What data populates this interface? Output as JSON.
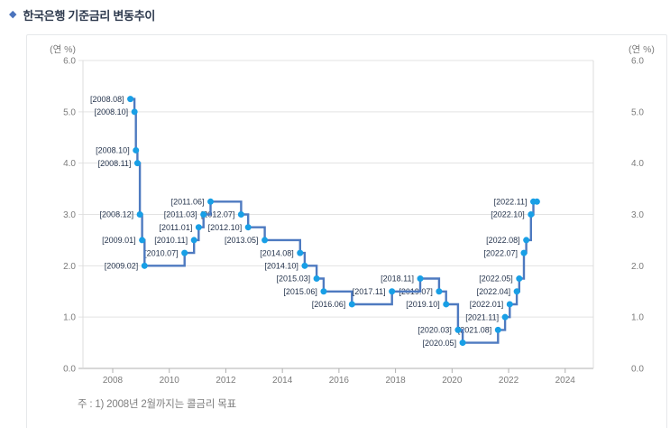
{
  "header": {
    "bullet": "◆",
    "title": "한국은행 기준금리 변동추이"
  },
  "footnote": {
    "text": "주 : 1) 2008년 2월까지는 콜금리 목표"
  },
  "chart_data": {
    "type": "line",
    "subtype": "step-after",
    "title": "한국은행 기준금리 변동추이",
    "ylabel": "(연 %)",
    "ylabel_right": "(연 %)",
    "xlabel": "",
    "ylim": [
      0.0,
      6.0
    ],
    "xlim": [
      2007,
      2025
    ],
    "grid": true,
    "legend": "none",
    "colors": {
      "line": "#4e7ac0",
      "marker": "#189fe6",
      "grid": "#e3e3e3",
      "axis": "#b0b0b0",
      "axis_side": "#dcdcdc"
    },
    "yticks": [
      {
        "value": 6,
        "label": "6.0"
      },
      {
        "value": 5,
        "label": "5.0"
      },
      {
        "value": 4,
        "label": "4.0"
      },
      {
        "value": 3,
        "label": "3.0"
      },
      {
        "value": 2,
        "label": "2.0"
      },
      {
        "value": 1,
        "label": "1.0"
      },
      {
        "value": 0,
        "label": "0.0"
      }
    ],
    "xticks": [
      {
        "value": 2008,
        "label": "2008"
      },
      {
        "value": 2010,
        "label": "2010"
      },
      {
        "value": 2012,
        "label": "2012"
      },
      {
        "value": 2014,
        "label": "2014"
      },
      {
        "value": 2016,
        "label": "2016"
      },
      {
        "value": 2018,
        "label": "2018"
      },
      {
        "value": 2020,
        "label": "2020"
      },
      {
        "value": 2022,
        "label": "2022"
      },
      {
        "value": 2024,
        "label": "2024"
      }
    ],
    "points": [
      {
        "label": "[2008.08]",
        "x": 2008.625,
        "y": 5.25
      },
      {
        "label": "[2008.10]",
        "x": 2008.77,
        "y": 5.0
      },
      {
        "label": "[2008.10]",
        "x": 2008.82,
        "y": 4.25
      },
      {
        "label": "[2008.11]",
        "x": 2008.875,
        "y": 4.0
      },
      {
        "label": "[2008.12]",
        "x": 2008.96,
        "y": 3.0
      },
      {
        "label": "[2009.01]",
        "x": 2009.04,
        "y": 2.5
      },
      {
        "label": "[2009.02]",
        "x": 2009.125,
        "y": 2.0
      },
      {
        "label": "[2010.07]",
        "x": 2010.54,
        "y": 2.25
      },
      {
        "label": "[2010.11]",
        "x": 2010.875,
        "y": 2.5
      },
      {
        "label": "[2011.01]",
        "x": 2011.04,
        "y": 2.75
      },
      {
        "label": "[2011.03]",
        "x": 2011.21,
        "y": 3.0
      },
      {
        "label": "[2011.06]",
        "x": 2011.46,
        "y": 3.25
      },
      {
        "label": "[2012.07]",
        "x": 2012.54,
        "y": 3.0
      },
      {
        "label": "[2012.10]",
        "x": 2012.79,
        "y": 2.75
      },
      {
        "label": "[2013.05]",
        "x": 2013.375,
        "y": 2.5
      },
      {
        "label": "[2014.08]",
        "x": 2014.625,
        "y": 2.25
      },
      {
        "label": "[2014.10]",
        "x": 2014.79,
        "y": 2.0
      },
      {
        "label": "[2015.03]",
        "x": 2015.21,
        "y": 1.75
      },
      {
        "label": "[2015.06]",
        "x": 2015.46,
        "y": 1.5
      },
      {
        "label": "[2016.06]",
        "x": 2016.46,
        "y": 1.25
      },
      {
        "label": "[2017.11]",
        "x": 2017.875,
        "y": 1.5
      },
      {
        "label": "[2018.11]",
        "x": 2018.875,
        "y": 1.75
      },
      {
        "label": "[2019.07]",
        "x": 2019.54,
        "y": 1.5
      },
      {
        "label": "[2019.10]",
        "x": 2019.79,
        "y": 1.25
      },
      {
        "label": "[2020.03]",
        "x": 2020.21,
        "y": 0.75
      },
      {
        "label": "[2020.05]",
        "x": 2020.375,
        "y": 0.5
      },
      {
        "label": "[2021.08]",
        "x": 2021.625,
        "y": 0.75
      },
      {
        "label": "[2021.11]",
        "x": 2021.875,
        "y": 1.0
      },
      {
        "label": "[2022.01]",
        "x": 2022.04,
        "y": 1.25
      },
      {
        "label": "[2022.04]",
        "x": 2022.29,
        "y": 1.5
      },
      {
        "label": "[2022.05]",
        "x": 2022.375,
        "y": 1.75
      },
      {
        "label": "[2022.07]",
        "x": 2022.54,
        "y": 2.25
      },
      {
        "label": "[2022.08]",
        "x": 2022.625,
        "y": 2.5
      },
      {
        "label": "[2022.10]",
        "x": 2022.79,
        "y": 3.0
      },
      {
        "label": "[2022.11]",
        "x": 2022.875,
        "y": 3.25
      },
      {
        "label": "",
        "x": 2023.0,
        "y": 3.25
      }
    ]
  }
}
